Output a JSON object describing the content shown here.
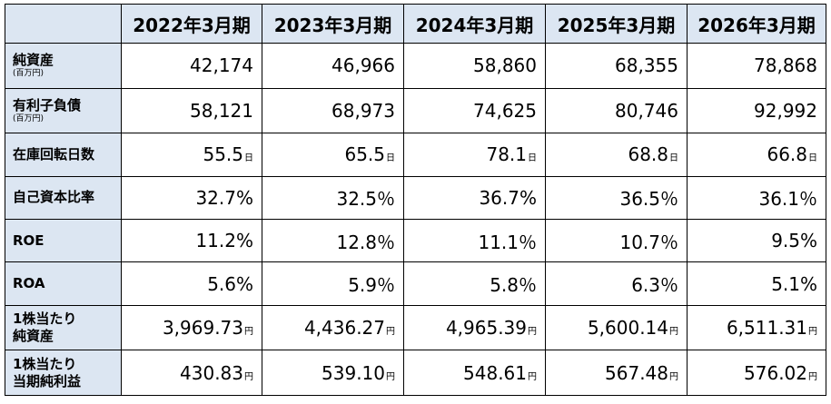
{
  "header": {
    "corner": "",
    "years": [
      "2022年3月期",
      "2023年3月期",
      "2024年3月期",
      "2025年3月期",
      "2026年3月期"
    ]
  },
  "rows": [
    {
      "label": "純資産",
      "sub": "(百万円)",
      "values": [
        "42,174",
        "46,966",
        "58,860",
        "68,355",
        "78,868"
      ],
      "units": [
        "",
        "",
        "",
        "",
        ""
      ]
    },
    {
      "label": "有利子負債",
      "sub": "(百万円)",
      "values": [
        "58,121",
        "68,973",
        "74,625",
        "80,746",
        "92,992"
      ],
      "units": [
        "",
        "",
        "",
        "",
        ""
      ]
    },
    {
      "label": "在庫回転日数",
      "sub": "",
      "values": [
        "55.5",
        "65.5",
        "78.1",
        "68.8",
        "66.8"
      ],
      "units": [
        "日",
        "日",
        "日",
        "日",
        "日"
      ]
    },
    {
      "label": "自己資本比率",
      "sub": "",
      "values": [
        "32.7%",
        "32.5％",
        "36.7%",
        "36.5％",
        "36.1％"
      ],
      "units": [
        "",
        "",
        "",
        "",
        ""
      ]
    },
    {
      "label": "ROE",
      "sub": "",
      "values": [
        "11.2%",
        "12.8％",
        "11.1％",
        "10.7％",
        "9.5%"
      ],
      "units": [
        "",
        "",
        "",
        "",
        ""
      ]
    },
    {
      "label": "ROA",
      "sub": "",
      "values": [
        "5.6%",
        "5.9％",
        "5.8％",
        "6.3％",
        "5.1%"
      ],
      "units": [
        "",
        "",
        "",
        "",
        ""
      ]
    },
    {
      "label": "1株当たり純資産",
      "label_lines": [
        "1株当たり",
        "純資産"
      ],
      "sub": "",
      "values": [
        "3,969.73",
        "4,436.27",
        "4,965.39",
        "5,600.14",
        "6,511.31"
      ],
      "units": [
        "円",
        "円",
        "円",
        "円",
        "円"
      ]
    },
    {
      "label": "1株当たり当期純利益",
      "label_lines": [
        "1株当たり",
        "当期純利益"
      ],
      "sub": "",
      "values": [
        "430.83",
        "539.10",
        "548.61",
        "567.48",
        "576.02"
      ],
      "units": [
        "円",
        "円",
        "円",
        "円",
        "円"
      ]
    }
  ]
}
